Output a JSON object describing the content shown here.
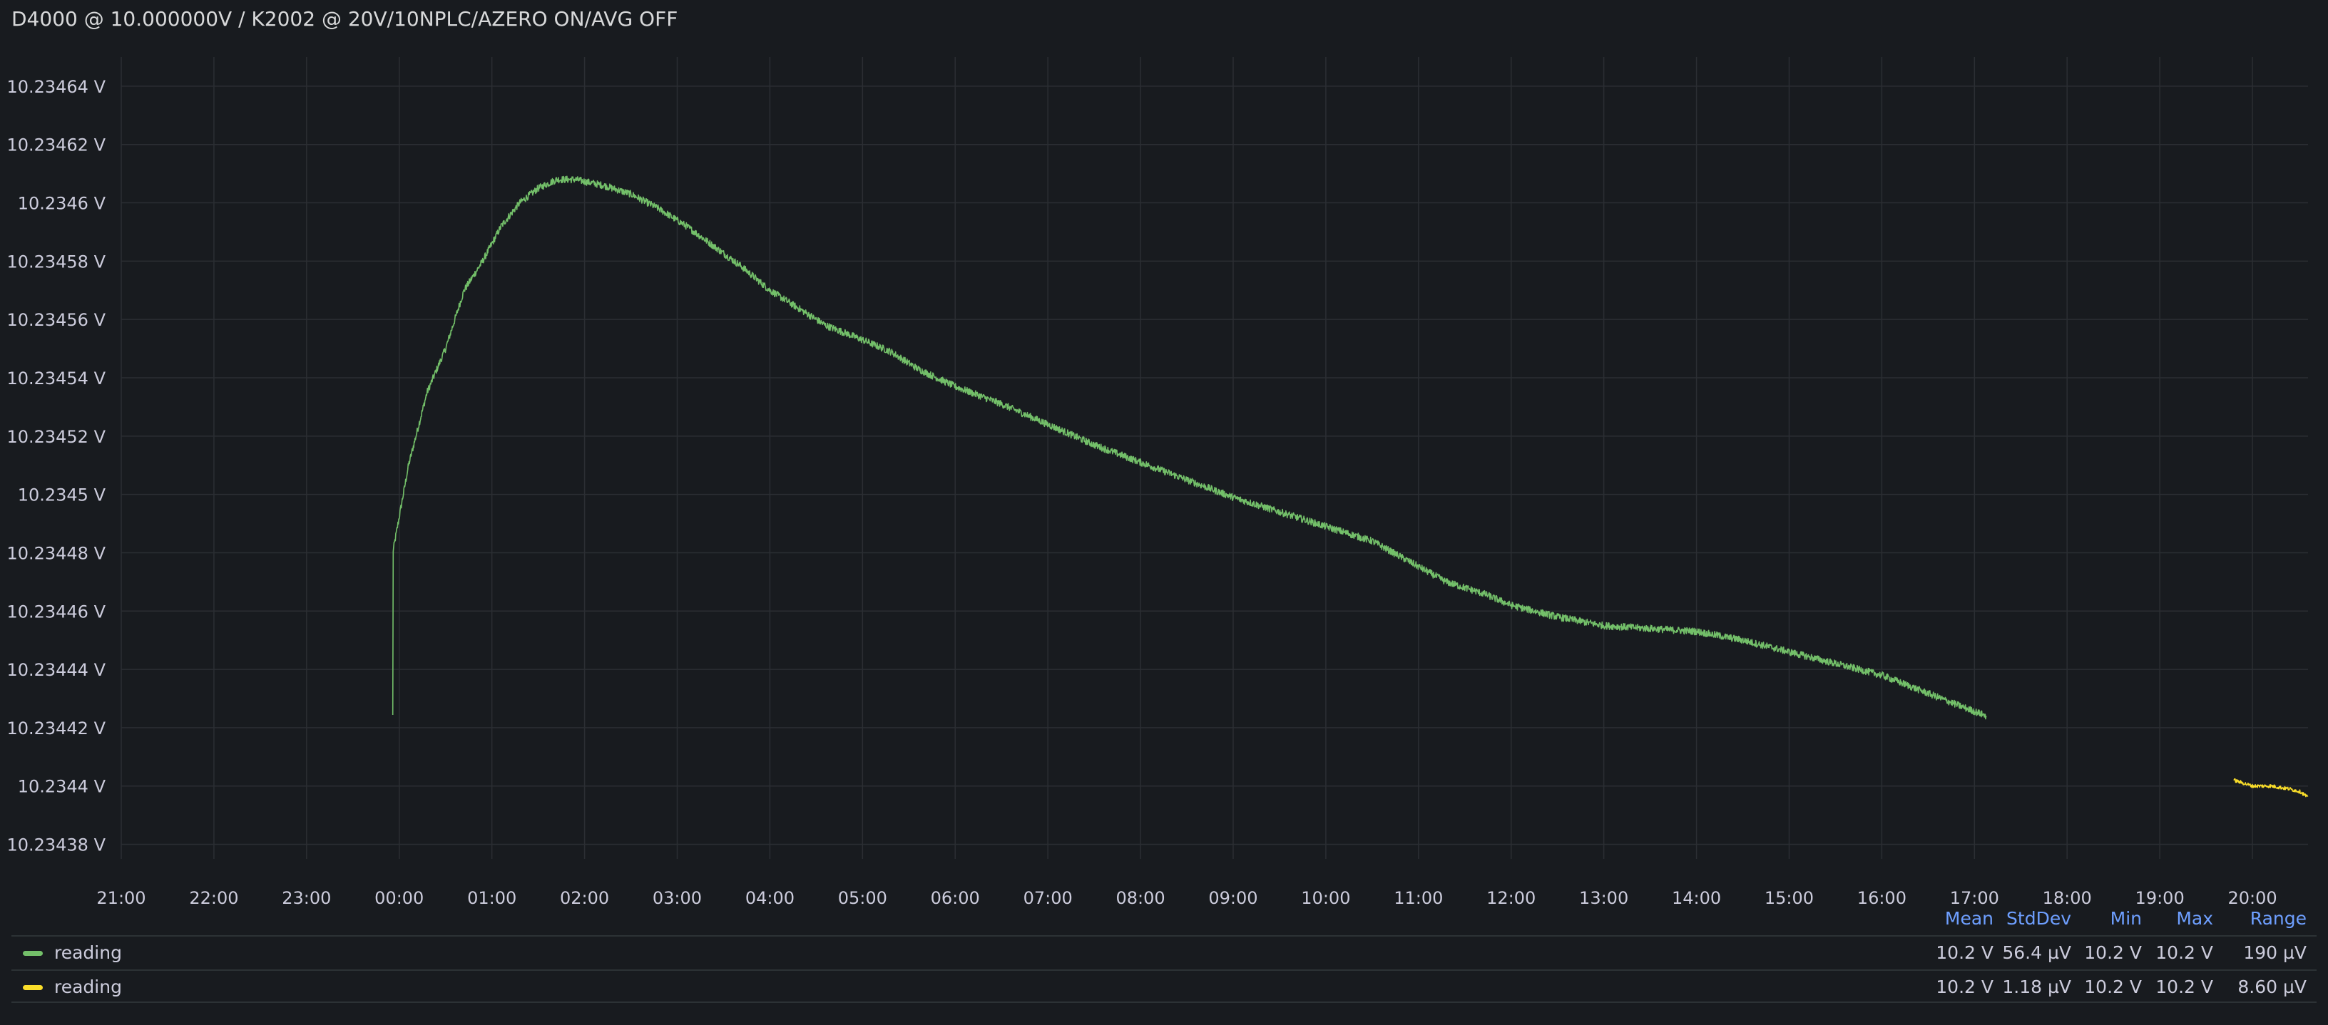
{
  "panel": {
    "title": "D4000 @ 10.000000V / K2002 @ 20V/10NPLC/AZERO ON/AVG OFF"
  },
  "chart_data": {
    "type": "line",
    "title": "D4000 @ 10.000000V / K2002 @ 20V/10NPLC/AZERO ON/AVG OFF",
    "xlabel": "",
    "ylabel": "",
    "x_unit": "hours since 21:00",
    "xlim": [
      0,
      23.6
    ],
    "ylim": [
      10.234375,
      10.23465
    ],
    "grid": true,
    "y_ticks": [
      {
        "value": 10.23438,
        "label": "10.23438 V"
      },
      {
        "value": 10.2344,
        "label": "10.2344 V"
      },
      {
        "value": 10.23442,
        "label": "10.23442 V"
      },
      {
        "value": 10.23444,
        "label": "10.23444 V"
      },
      {
        "value": 10.23446,
        "label": "10.23446 V"
      },
      {
        "value": 10.23448,
        "label": "10.23448 V"
      },
      {
        "value": 10.2345,
        "label": "10.2345 V"
      },
      {
        "value": 10.23452,
        "label": "10.23452 V"
      },
      {
        "value": 10.23454,
        "label": "10.23454 V"
      },
      {
        "value": 10.23456,
        "label": "10.23456 V"
      },
      {
        "value": 10.23458,
        "label": "10.23458 V"
      },
      {
        "value": 10.2346,
        "label": "10.2346 V"
      },
      {
        "value": 10.23462,
        "label": "10.23462 V"
      },
      {
        "value": 10.23464,
        "label": "10.23464 V"
      }
    ],
    "x_ticks": [
      {
        "value": 0,
        "label": "21:00"
      },
      {
        "value": 1,
        "label": "22:00"
      },
      {
        "value": 2,
        "label": "23:00"
      },
      {
        "value": 3,
        "label": "00:00"
      },
      {
        "value": 4,
        "label": "01:00"
      },
      {
        "value": 5,
        "label": "02:00"
      },
      {
        "value": 6,
        "label": "03:00"
      },
      {
        "value": 7,
        "label": "04:00"
      },
      {
        "value": 8,
        "label": "05:00"
      },
      {
        "value": 9,
        "label": "06:00"
      },
      {
        "value": 10,
        "label": "07:00"
      },
      {
        "value": 11,
        "label": "08:00"
      },
      {
        "value": 12,
        "label": "09:00"
      },
      {
        "value": 13,
        "label": "10:00"
      },
      {
        "value": 14,
        "label": "11:00"
      },
      {
        "value": 15,
        "label": "12:00"
      },
      {
        "value": 16,
        "label": "13:00"
      },
      {
        "value": 17,
        "label": "14:00"
      },
      {
        "value": 18,
        "label": "15:00"
      },
      {
        "value": 19,
        "label": "16:00"
      },
      {
        "value": 20,
        "label": "17:00"
      },
      {
        "value": 21,
        "label": "18:00"
      },
      {
        "value": 22,
        "label": "19:00"
      },
      {
        "value": 23,
        "label": "20:00"
      }
    ],
    "series": [
      {
        "name": "reading",
        "color": "#73bf69",
        "noise": 1.2e-06,
        "x": [
          2.93,
          3.1,
          3.3,
          3.5,
          3.7,
          3.9,
          4.1,
          4.3,
          4.5,
          4.7,
          4.9,
          5.2,
          5.5,
          5.8,
          6.1,
          6.4,
          6.7,
          7.0,
          7.3,
          7.6,
          8.0,
          8.3,
          8.6,
          9.0,
          9.5,
          10.0,
          10.5,
          11.0,
          11.5,
          12.0,
          12.5,
          13.0,
          13.5,
          13.9,
          14.3,
          14.7,
          15.0,
          15.5,
          16.0,
          16.5,
          17.0,
          17.5,
          18.0,
          18.5,
          19.0,
          19.4,
          19.8,
          20.13
        ],
        "y": [
          10.23448,
          10.23451,
          10.234535,
          10.23455,
          10.23457,
          10.23458,
          10.234592,
          10.2346,
          10.234605,
          10.234608,
          10.234608,
          10.234606,
          10.234603,
          10.234598,
          10.234592,
          10.234585,
          10.234578,
          10.23457,
          10.234564,
          10.234558,
          10.234553,
          10.234549,
          10.234543,
          10.234537,
          10.234531,
          10.234524,
          10.234517,
          10.234511,
          10.234505,
          10.234499,
          10.234494,
          10.234489,
          10.234484,
          10.234477,
          10.23447,
          10.234466,
          10.234462,
          10.234458,
          10.234455,
          10.234454,
          10.234453,
          10.23445,
          10.234446,
          10.234442,
          10.234438,
          10.234433,
          10.234428,
          10.234424
        ]
      },
      {
        "name": "reading",
        "color": "#fade2a",
        "noise": 6e-07,
        "x": [
          22.8,
          23.0,
          23.2,
          23.4,
          23.52,
          23.6
        ],
        "y": [
          10.234402,
          10.2344,
          10.2344,
          10.234399,
          10.234398,
          10.234396
        ]
      }
    ]
  },
  "legend": {
    "headers": [
      "Mean",
      "StdDev",
      "Min",
      "Max",
      "Range"
    ],
    "rows": [
      {
        "name": "reading",
        "color": "#73bf69",
        "mean": "10.2 V",
        "stddev": "56.4 µV",
        "min": "10.2 V",
        "max": "10.2 V",
        "range": "190 µV"
      },
      {
        "name": "reading",
        "color": "#fade2a",
        "mean": "10.2 V",
        "stddev": "1.18 µV",
        "min": "10.2 V",
        "max": "10.2 V",
        "range": "8.60 µV"
      }
    ]
  }
}
